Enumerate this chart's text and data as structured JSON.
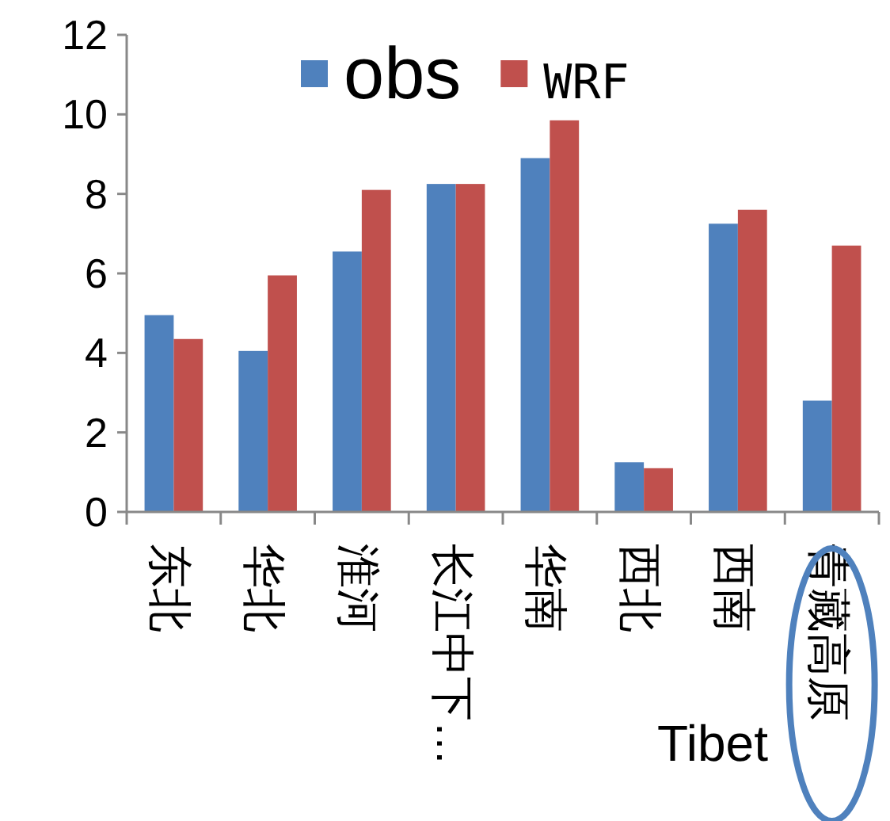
{
  "chart_data": {
    "type": "bar",
    "categories": [
      "东北",
      "华北",
      "淮河",
      "长江中下…",
      "华南",
      "西北",
      "西南",
      "青藏高原"
    ],
    "series": [
      {
        "name": "obs",
        "color": "#4f81bd",
        "values": [
          4.95,
          4.05,
          6.55,
          8.25,
          8.9,
          1.25,
          7.25,
          2.8
        ]
      },
      {
        "name": "WRF",
        "color": "#c0504d",
        "values": [
          4.35,
          5.95,
          8.1,
          8.25,
          9.85,
          1.1,
          7.6,
          6.7
        ]
      }
    ],
    "ylim": [
      0,
      12
    ],
    "yticks": [
      0,
      2,
      4,
      6,
      8,
      10,
      12
    ],
    "grid": false,
    "legend": "top",
    "annotations": [
      "Tibet"
    ]
  }
}
